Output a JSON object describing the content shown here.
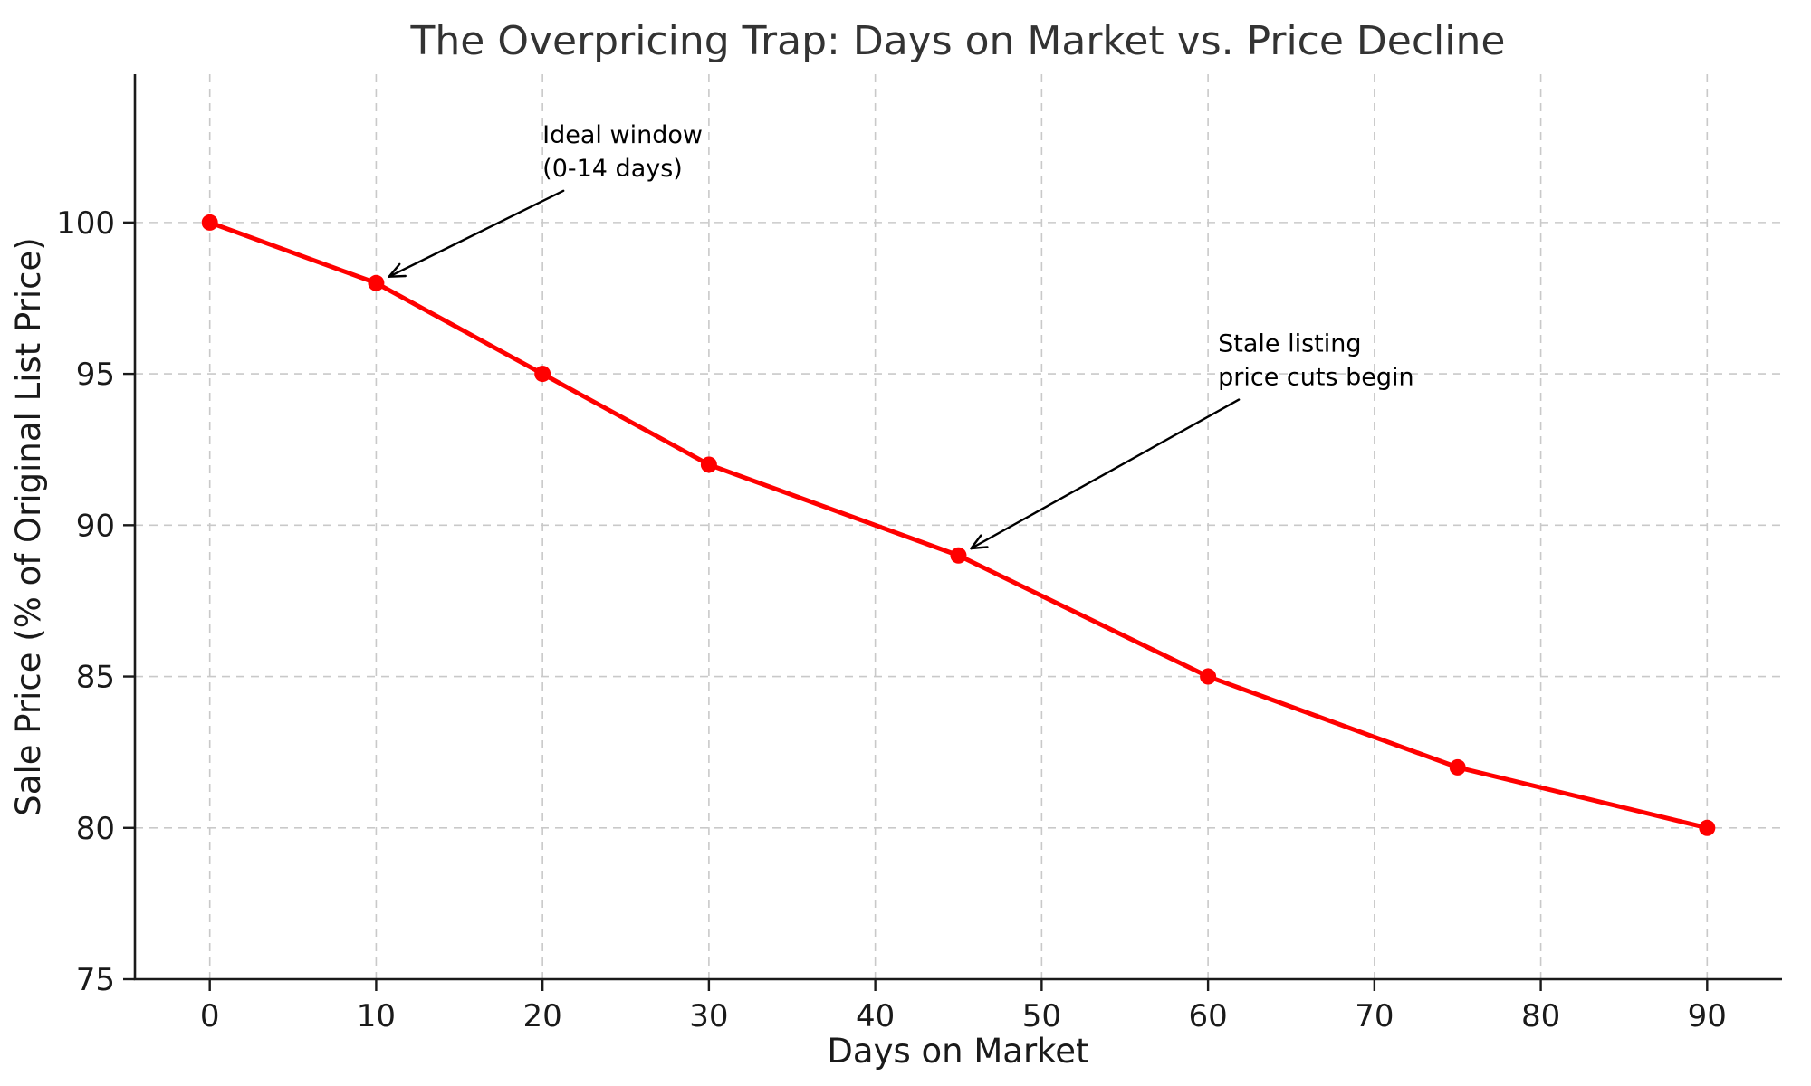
{
  "chart_data": {
    "type": "line",
    "title": "The Overpricing Trap: Days on Market vs. Price Decline",
    "xlabel": "Days on Market",
    "ylabel": "Sale Price (% of Original List Price)",
    "x": [
      0,
      10,
      20,
      30,
      45,
      60,
      75,
      90
    ],
    "y": [
      100,
      98,
      95,
      92,
      89,
      85,
      82,
      80
    ],
    "xticks": [
      0,
      10,
      20,
      30,
      40,
      50,
      60,
      70,
      80,
      90
    ],
    "yticks": [
      75,
      80,
      85,
      90,
      95,
      100
    ],
    "xlim": [
      -4.5,
      94.5
    ],
    "ylim": [
      75,
      104.9
    ],
    "grid": true,
    "legend": "none",
    "line_color": "#ff0000",
    "marker_color": "#ff0000",
    "grid_color": "#c9c9c9",
    "axis_color": "#1a1a1a",
    "title_color": "#333333",
    "annotation_color": "#000000",
    "annotations": [
      {
        "lines": [
          "Ideal window",
          "(0-14 days)"
        ],
        "target": [
          10,
          98
        ],
        "text_pos": [
          20.0,
          103.5
        ]
      },
      {
        "lines": [
          "Stale listing",
          "price cuts begin"
        ],
        "target": [
          45,
          89
        ],
        "text_pos": [
          60.6,
          96.6
        ]
      }
    ]
  }
}
